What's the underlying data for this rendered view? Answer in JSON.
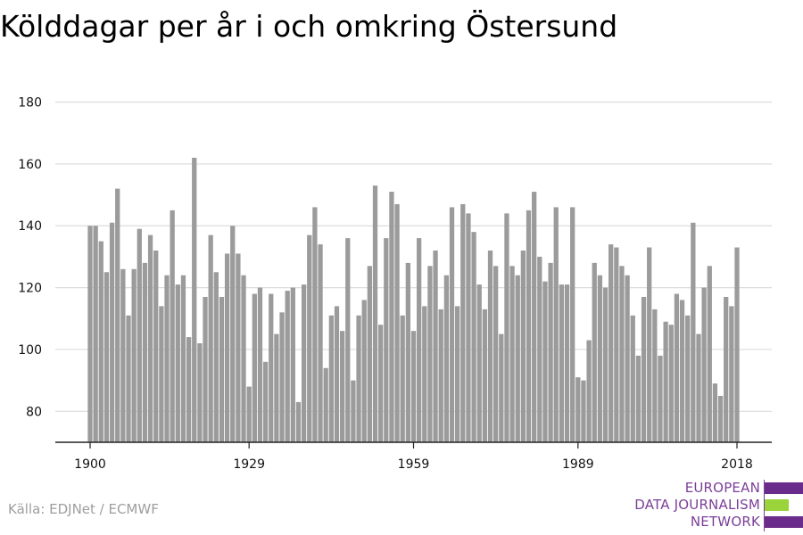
{
  "chart_data": {
    "type": "bar",
    "title": "Kölddagar per år i och omkring Östersund",
    "xlabel": "",
    "ylabel": "",
    "ylim": [
      70,
      180
    ],
    "yticks": [
      80,
      100,
      120,
      140,
      160,
      180
    ],
    "xticks": [
      1900,
      1929,
      1959,
      1989,
      2018
    ],
    "grid": true,
    "bar_color": "#9b9b9b",
    "years": [
      1900,
      1901,
      1902,
      1903,
      1904,
      1905,
      1906,
      1907,
      1908,
      1909,
      1910,
      1911,
      1912,
      1913,
      1914,
      1915,
      1916,
      1917,
      1918,
      1919,
      1920,
      1921,
      1922,
      1923,
      1924,
      1925,
      1926,
      1927,
      1928,
      1929,
      1930,
      1931,
      1932,
      1933,
      1934,
      1935,
      1936,
      1937,
      1938,
      1939,
      1940,
      1941,
      1942,
      1943,
      1944,
      1945,
      1946,
      1947,
      1948,
      1949,
      1950,
      1951,
      1952,
      1953,
      1954,
      1955,
      1956,
      1957,
      1958,
      1959,
      1960,
      1961,
      1962,
      1963,
      1964,
      1965,
      1966,
      1967,
      1968,
      1969,
      1970,
      1971,
      1972,
      1973,
      1974,
      1975,
      1976,
      1977,
      1978,
      1979,
      1980,
      1981,
      1982,
      1983,
      1984,
      1985,
      1986,
      1987,
      1988,
      1989,
      1990,
      1991,
      1992,
      1993,
      1994,
      1995,
      1996,
      1997,
      1998,
      1999,
      2000,
      2001,
      2002,
      2003,
      2004,
      2005,
      2006,
      2007,
      2008,
      2009,
      2010,
      2011,
      2012,
      2013,
      2014,
      2015,
      2016,
      2017,
      2018
    ],
    "values": [
      140,
      140,
      135,
      125,
      141,
      152,
      126,
      111,
      126,
      139,
      128,
      137,
      132,
      114,
      124,
      145,
      121,
      124,
      104,
      162,
      102,
      117,
      137,
      125,
      117,
      131,
      140,
      131,
      124,
      88,
      118,
      120,
      96,
      118,
      105,
      112,
      119,
      120,
      83,
      121,
      137,
      146,
      134,
      94,
      111,
      114,
      106,
      136,
      90,
      111,
      116,
      127,
      153,
      108,
      136,
      151,
      147,
      111,
      128,
      106,
      136,
      114,
      127,
      132,
      113,
      124,
      146,
      114,
      147,
      144,
      138,
      121,
      113,
      132,
      127,
      105,
      144,
      127,
      124,
      132,
      145,
      151,
      130,
      122,
      128,
      146,
      121,
      121,
      146,
      91,
      90,
      103,
      128,
      124,
      120,
      134,
      133,
      127,
      124,
      111,
      98,
      117,
      133,
      113,
      98,
      109,
      108,
      118,
      116,
      111,
      141,
      105,
      120,
      127,
      89,
      85,
      117,
      114,
      133
    ]
  },
  "source": "Källa: EDJNet / ECMWF",
  "logo": {
    "lines": [
      "EUROPEAN",
      "DATA JOURNALISM",
      "NETWORK"
    ],
    "text_color": "#7b3f98",
    "bar_colors": [
      "#6a2c8a",
      "#9bd33a",
      "#6a2c8a"
    ]
  }
}
